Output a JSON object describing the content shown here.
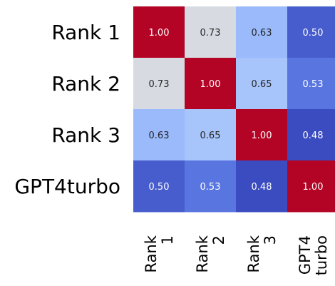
{
  "chart_data": {
    "type": "heatmap",
    "row_labels": [
      "Rank 1",
      "Rank 2",
      "Rank 3",
      "GPT4turbo"
    ],
    "col_labels": [
      [
        "Rank",
        "1"
      ],
      [
        "Rank",
        "2"
      ],
      [
        "Rank",
        "3"
      ],
      [
        "GPT4",
        "turbo"
      ]
    ],
    "values": [
      [
        1.0,
        0.73,
        0.63,
        0.5
      ],
      [
        0.73,
        1.0,
        0.65,
        0.53
      ],
      [
        0.63,
        0.65,
        1.0,
        0.48
      ],
      [
        0.5,
        0.53,
        0.48,
        1.0
      ]
    ],
    "cell_labels": [
      [
        "1.00",
        "0.73",
        "0.63",
        "0.50"
      ],
      [
        "0.73",
        "1.00",
        "0.65",
        "0.53"
      ],
      [
        "0.63",
        "0.65",
        "1.00",
        "0.48"
      ],
      [
        "0.50",
        "0.53",
        "0.48",
        "1.00"
      ]
    ],
    "colormap": "coolwarm",
    "color_range": [
      0.48,
      1.0
    ],
    "colorbar": false,
    "grid": false,
    "title": "",
    "xlabel": "",
    "ylabel": ""
  }
}
